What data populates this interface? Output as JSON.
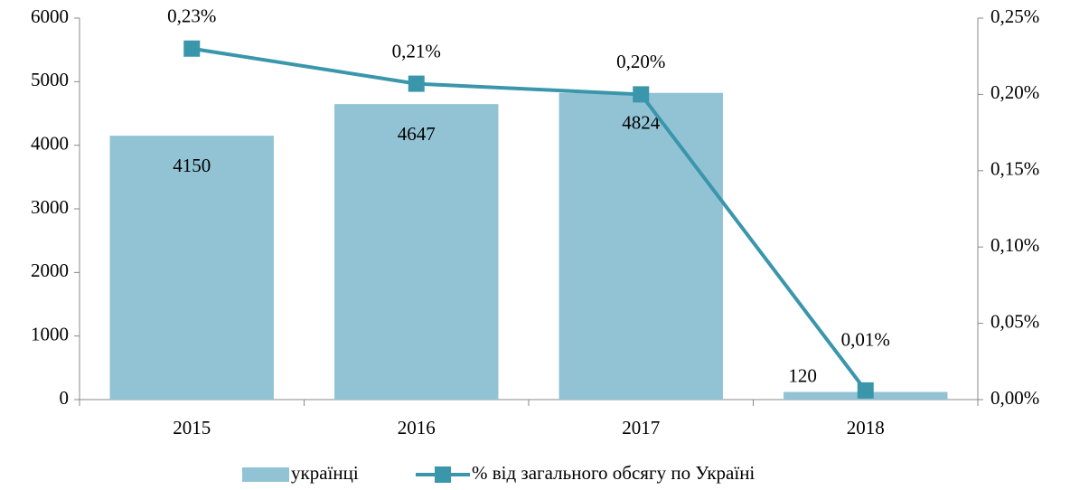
{
  "chart_data": {
    "type": "bar",
    "categories": [
      "2015",
      "2016",
      "2017",
      "2018"
    ],
    "series": [
      {
        "name": "українці",
        "type": "bar",
        "color": "#92c3d5",
        "values": [
          4150,
          4647,
          4824,
          120
        ]
      },
      {
        "name": "% від загального обсягу по Україні",
        "type": "line",
        "axis": "y2",
        "color": "#3a96ab",
        "values": [
          0.23,
          0.207,
          0.2,
          0.006
        ],
        "value_labels": [
          "0,23%",
          "0,21%",
          "0,20%",
          "0,01%"
        ]
      }
    ],
    "ylim": [
      0,
      6000
    ],
    "yticks": [
      0,
      1000,
      2000,
      3000,
      4000,
      5000,
      6000
    ],
    "y2lim": [
      0,
      0.25
    ],
    "y2ticks": [
      {
        "value": 0,
        "label": "0,00%"
      },
      {
        "value": 0.05,
        "label": "0,05%"
      },
      {
        "value": 0.1,
        "label": "0,10%"
      },
      {
        "value": 0.15,
        "label": "0,15%"
      },
      {
        "value": 0.2,
        "label": "0,20%"
      },
      {
        "value": 0.25,
        "label": "0,25%"
      }
    ],
    "grid": false,
    "legend": "bottom"
  }
}
